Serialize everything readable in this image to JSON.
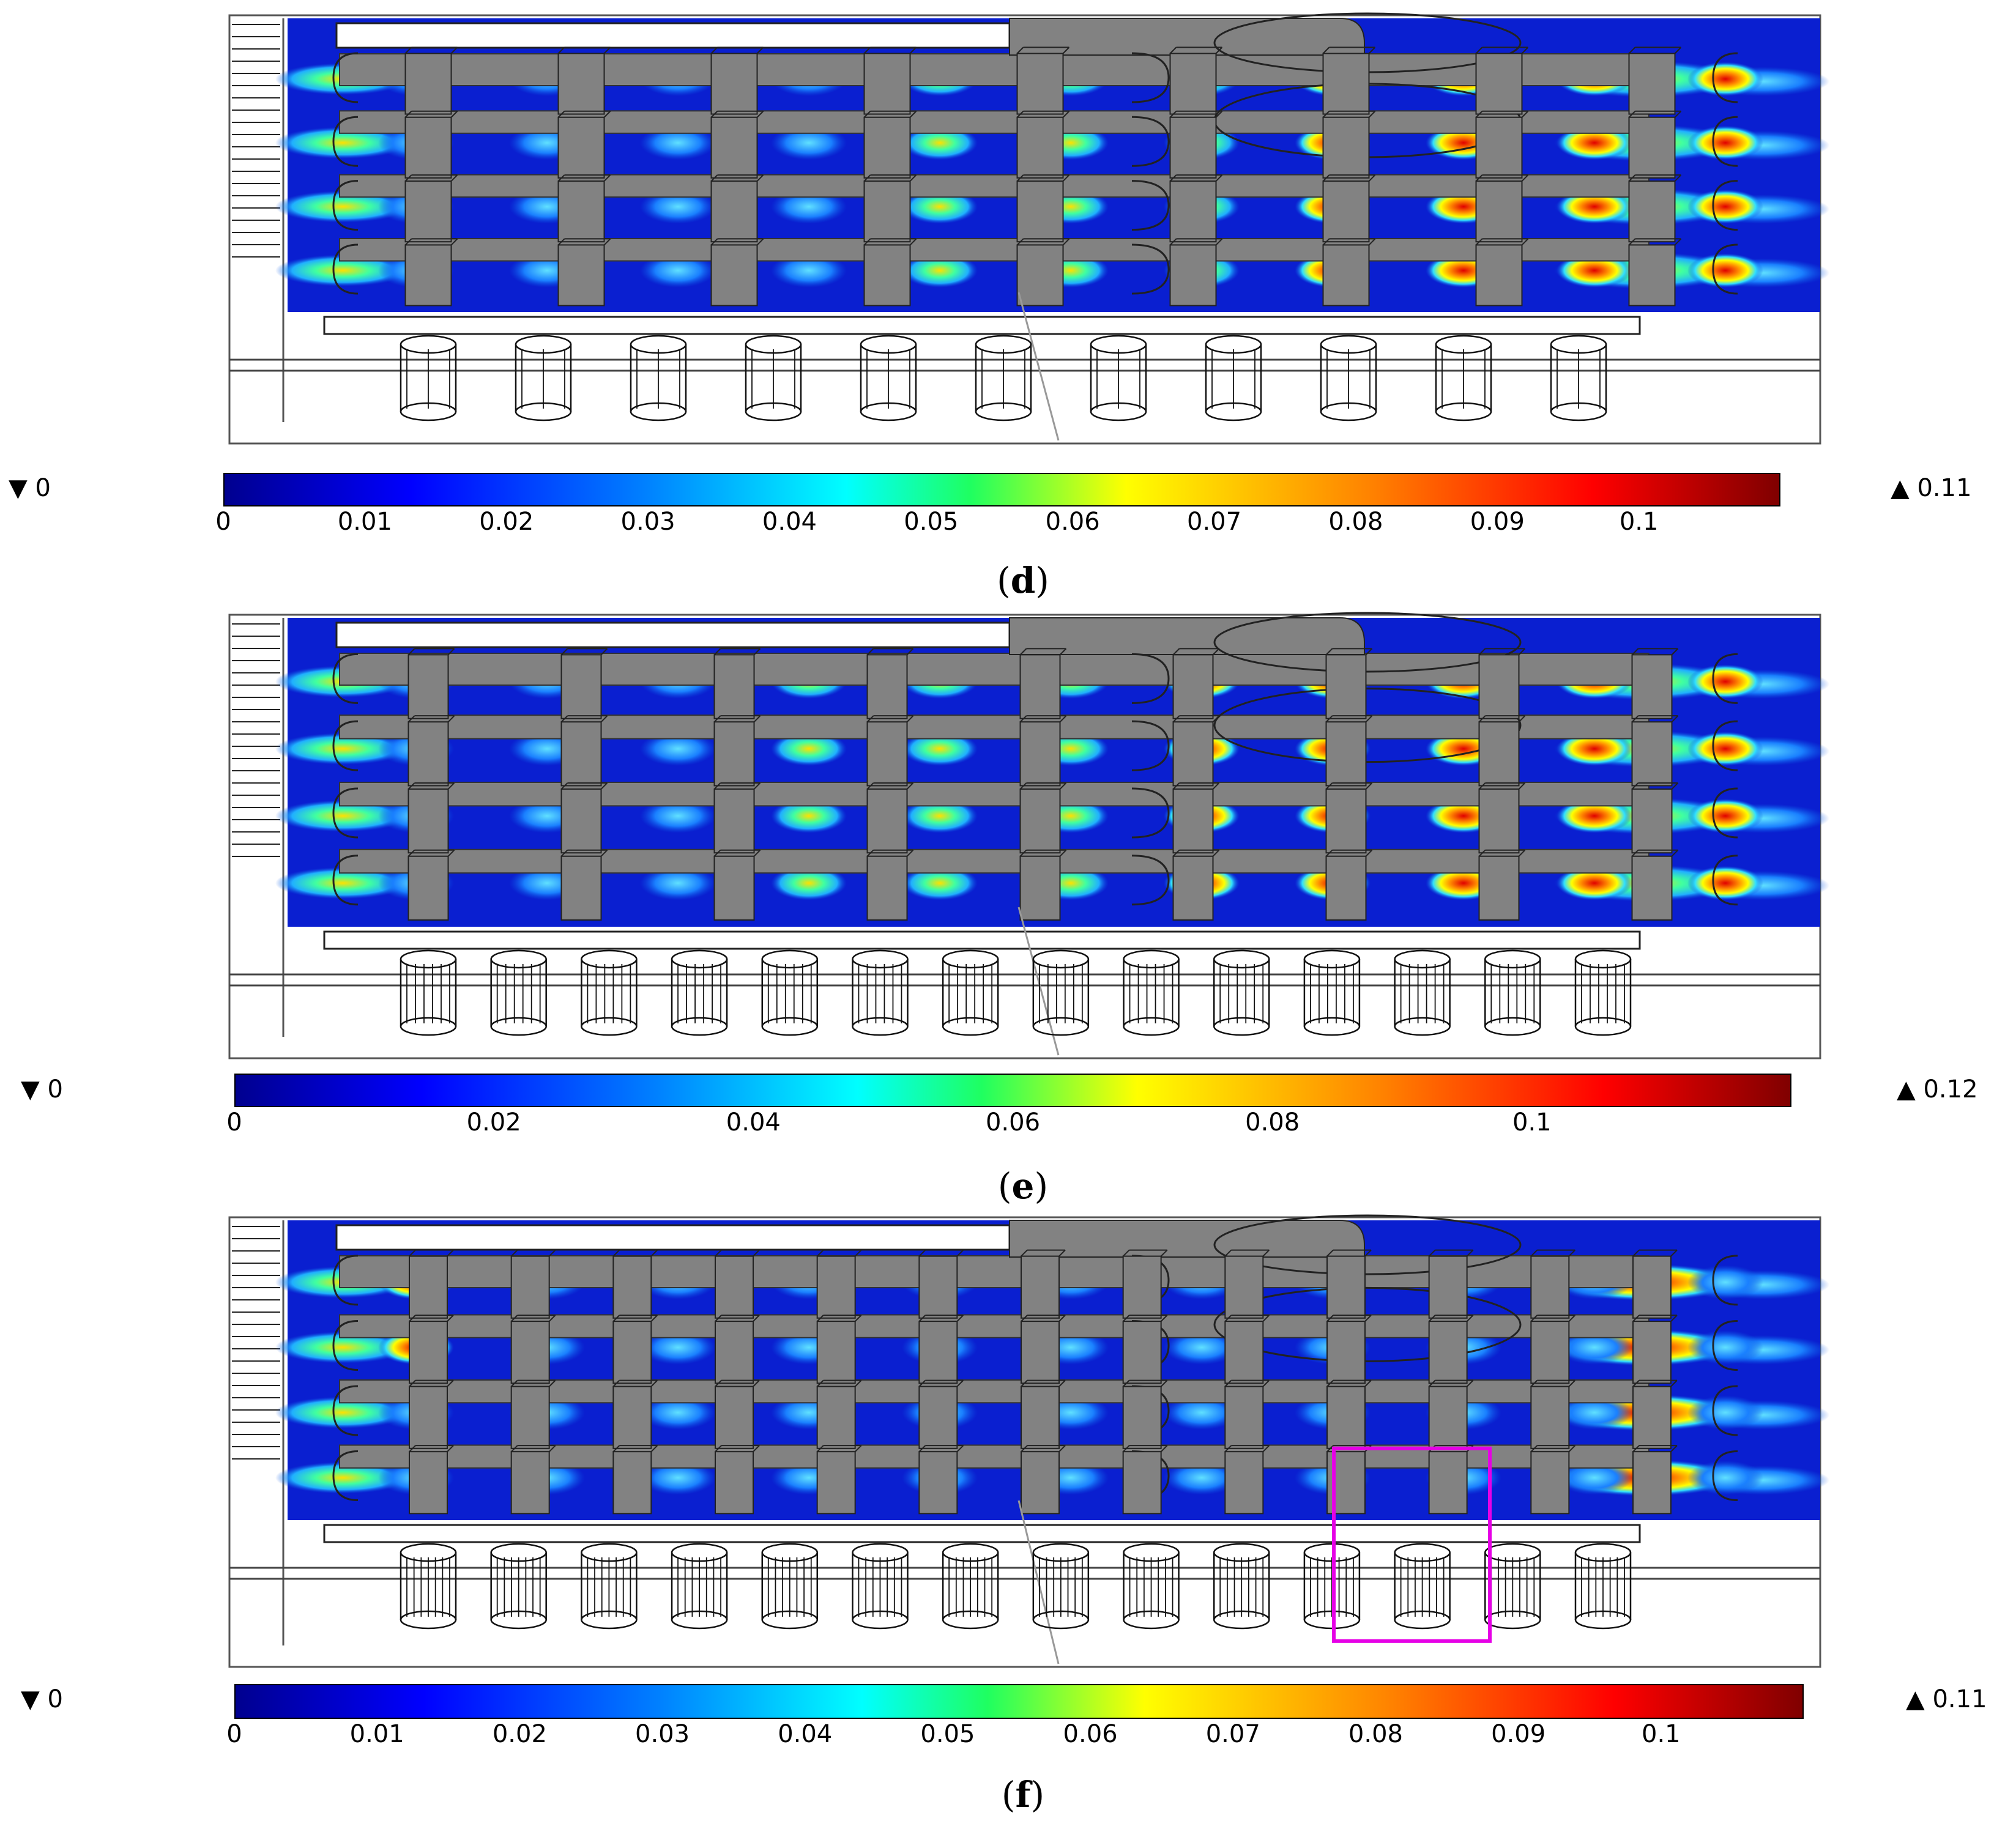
{
  "panels": [
    {
      "id": "d",
      "caption_letter": "d",
      "colorbar": {
        "min_label": "▼ 0",
        "max_label": "▲ 0.11",
        "ticks": [
          "0",
          "0.01",
          "0.02",
          "0.03",
          "0.04",
          "0.05",
          "0.06",
          "0.07",
          "0.08",
          "0.09",
          "0.1"
        ],
        "range": [
          0,
          0.11
        ]
      },
      "highlight_box": false
    },
    {
      "id": "e",
      "caption_letter": "e",
      "colorbar": {
        "min_label": "▼ 0",
        "max_label": "▲ 0.12",
        "ticks": [
          "0",
          "0.02",
          "0.04",
          "0.06",
          "0.08",
          "0.1"
        ],
        "range": [
          0,
          0.12
        ]
      },
      "highlight_box": false
    },
    {
      "id": "f",
      "caption_letter": "f",
      "colorbar": {
        "min_label": "▼ 0",
        "max_label": "▲ 0.11",
        "ticks": [
          "0",
          "0.01",
          "0.02",
          "0.03",
          "0.04",
          "0.05",
          "0.06",
          "0.07",
          "0.08",
          "0.09",
          "0.1"
        ],
        "range": [
          0,
          0.11
        ]
      },
      "highlight_box": true
    }
  ],
  "colors": {
    "domain_blue": "#0a1fd0",
    "solid_gray": "#828282",
    "highlight": "#e600e6"
  }
}
